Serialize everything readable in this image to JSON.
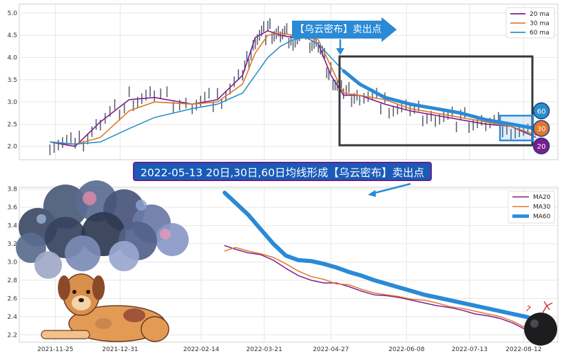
{
  "chart_data": [
    {
      "type": "line",
      "panel": "top",
      "title": "",
      "xlabel": "",
      "ylabel": "",
      "ylim": [
        1.7,
        5.2
      ],
      "yticks": [
        "2.0",
        "2.5",
        "3.0",
        "3.5",
        "4.0",
        "4.5",
        "5.0"
      ],
      "grid": true,
      "legend_position": "top-right",
      "x": [
        "2021-11-22",
        "2021-12-06",
        "2021-12-20",
        "2022-01-05",
        "2022-01-19",
        "2022-02-09",
        "2022-02-23",
        "2022-03-09",
        "2022-03-16",
        "2022-03-23",
        "2022-03-30",
        "2022-04-06",
        "2022-04-13",
        "2022-04-20",
        "2022-04-27",
        "2022-05-04",
        "2022-05-13",
        "2022-05-27",
        "2022-06-10",
        "2022-06-24",
        "2022-07-08",
        "2022-07-22",
        "2022-08-05",
        "2022-08-19"
      ],
      "series": [
        {
          "name": "20 ma",
          "color": "#7b1d8e",
          "values": [
            2.1,
            2.0,
            2.55,
            3.05,
            3.1,
            2.95,
            3.05,
            3.6,
            4.45,
            4.6,
            4.5,
            4.45,
            4.45,
            4.3,
            3.6,
            3.15,
            3.15,
            2.95,
            2.8,
            2.7,
            2.6,
            2.5,
            2.45,
            2.2
          ]
        },
        {
          "name": "30 ma",
          "color": "#e0762b",
          "values": [
            2.1,
            2.05,
            2.2,
            2.8,
            3.0,
            2.95,
            3.0,
            3.4,
            4.1,
            4.5,
            4.55,
            4.5,
            4.45,
            4.4,
            3.8,
            3.2,
            3.15,
            3.05,
            2.85,
            2.75,
            2.65,
            2.55,
            2.45,
            2.25
          ]
        },
        {
          "name": "60 ma",
          "color": "#2b8ec9",
          "values": [
            2.1,
            2.05,
            2.1,
            2.4,
            2.65,
            2.85,
            2.95,
            3.2,
            3.6,
            4.0,
            4.25,
            4.4,
            4.45,
            4.3,
            4.0,
            3.7,
            3.4,
            3.1,
            2.95,
            2.85,
            2.75,
            2.6,
            2.5,
            2.4
          ]
        }
      ],
      "callout": "【乌云密布】卖出点",
      "badges": [
        "60",
        "30",
        "20"
      ]
    },
    {
      "type": "line",
      "panel": "bottom",
      "title": "",
      "xlabel": "",
      "ylabel": "",
      "ylim": [
        2.12,
        3.82
      ],
      "yticks": [
        "2.2",
        "2.4",
        "2.6",
        "2.8",
        "3.0",
        "3.2",
        "3.4",
        "3.6",
        "3.8"
      ],
      "xticks": [
        "2021-11-25",
        "2021-12-31",
        "2022-02-14",
        "2022-03-21",
        "2022-04-27",
        "2022-06-08",
        "2022-07-13",
        "2022-08-12"
      ],
      "grid": true,
      "legend_position": "top-right",
      "x": [
        "2022-02-27",
        "2022-03-05",
        "2022-03-12",
        "2022-03-19",
        "2022-03-26",
        "2022-04-02",
        "2022-04-09",
        "2022-04-16",
        "2022-04-23",
        "2022-04-30",
        "2022-05-07",
        "2022-05-14",
        "2022-05-21",
        "2022-05-28",
        "2022-06-04",
        "2022-06-11",
        "2022-06-18",
        "2022-06-25",
        "2022-07-02",
        "2022-07-09",
        "2022-07-16",
        "2022-07-23",
        "2022-07-30",
        "2022-08-06",
        "2022-08-13",
        "2022-08-20"
      ],
      "series": [
        {
          "name": "MA20",
          "color": "#7b1d8e",
          "values": [
            3.18,
            3.14,
            3.1,
            3.08,
            3.02,
            2.93,
            2.85,
            2.8,
            2.77,
            2.77,
            2.73,
            2.68,
            2.64,
            2.63,
            2.61,
            2.58,
            2.55,
            2.52,
            2.5,
            2.47,
            2.43,
            2.41,
            2.38,
            2.33,
            2.26,
            2.19
          ]
        },
        {
          "name": "MA30",
          "color": "#e0762b",
          "values": [
            3.12,
            3.16,
            3.12,
            3.09,
            3.05,
            2.98,
            2.9,
            2.84,
            2.81,
            2.76,
            2.75,
            2.7,
            2.66,
            2.64,
            2.62,
            2.59,
            2.58,
            2.55,
            2.51,
            2.49,
            2.46,
            2.43,
            2.4,
            2.35,
            2.28,
            2.22
          ]
        },
        {
          "name": "MA60",
          "color": "#2a8ad6",
          "values": [
            3.76,
            3.65,
            3.52,
            3.36,
            3.2,
            3.07,
            3.02,
            3.01,
            2.98,
            2.94,
            2.89,
            2.85,
            2.8,
            2.76,
            2.72,
            2.68,
            2.64,
            2.61,
            2.58,
            2.55,
            2.52,
            2.49,
            2.46,
            2.43,
            2.4,
            2.36
          ]
        }
      ]
    }
  ],
  "banner": "2022-05-13 20日,30日,60日均线形成【乌云密布】卖出点",
  "colors": {
    "box": "#333a3f",
    "highlight": "#2a8ad6",
    "banner_bg": "#1a5bb8",
    "banner_border": "#6a1f8a"
  }
}
